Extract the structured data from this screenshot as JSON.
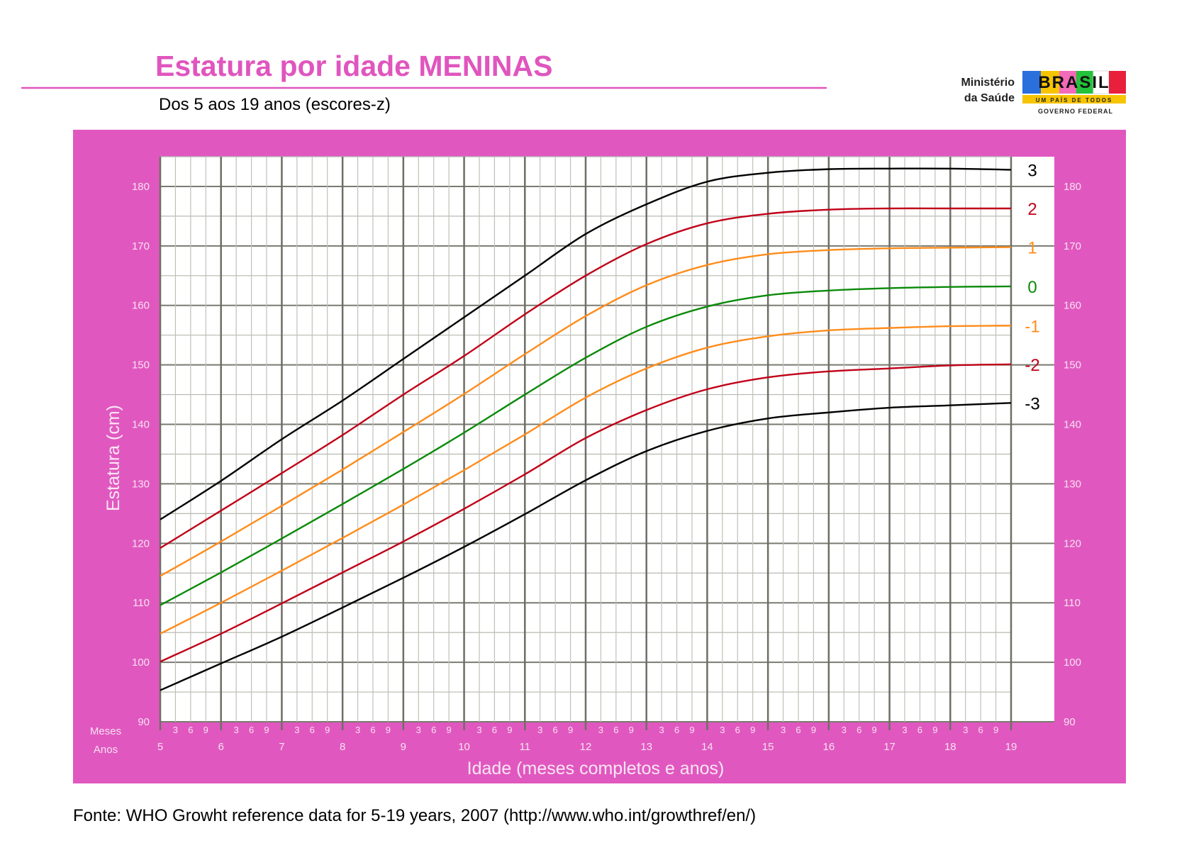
{
  "header": {
    "title": "Estatura por idade MENINAS",
    "subtitle": "Dos 5 aos 19 anos (escores-z)"
  },
  "logo": {
    "ministry_line1": "Ministério",
    "ministry_line2": "da Saúde",
    "brand": "BRASIL",
    "slogan": "UM PAÍS DE TODOS",
    "gov": "GOVERNO FEDERAL"
  },
  "colors": {
    "panel": "#e058bf",
    "title": "#e055be",
    "z3": "#000000",
    "z2": "#c00018",
    "z1": "#ff8c1a",
    "z0": "#0a8a0a"
  },
  "footer": {
    "source": "Fonte: WHO Growht reference data for 5-19 years, 2007 (http://www.who.int/growthref/en/)"
  },
  "chart_data": {
    "type": "line",
    "title": "Estatura por idade MENINAS",
    "xlabel": "Idade (meses completos e anos)",
    "ylabel": "Estatura (cm)",
    "xlim": [
      5,
      19
    ],
    "ylim": [
      90,
      185
    ],
    "grid": true,
    "x_row_labels": {
      "months": "Meses",
      "years": "Anos"
    },
    "month_ticks": [
      "3",
      "6",
      "9"
    ],
    "x_ticks": [
      "5",
      "6",
      "7",
      "8",
      "9",
      "10",
      "11",
      "12",
      "13",
      "14",
      "15",
      "16",
      "17",
      "18",
      "19"
    ],
    "y_ticks": [
      "90",
      "100",
      "110",
      "120",
      "130",
      "140",
      "150",
      "160",
      "170",
      "180"
    ],
    "x": [
      5,
      6,
      7,
      8,
      9,
      10,
      11,
      12,
      13,
      14,
      15,
      16,
      17,
      18,
      19
    ],
    "series": [
      {
        "name": "3",
        "color": "#000000",
        "values": [
          124,
          130.5,
          137.5,
          144,
          151,
          158,
          165,
          172,
          177,
          180.8,
          182.3,
          182.9,
          183,
          183,
          182.8
        ]
      },
      {
        "name": "2",
        "color": "#c00018",
        "values": [
          119.2,
          125.5,
          131.8,
          138.2,
          145,
          151.5,
          158.5,
          165,
          170.3,
          173.8,
          175.4,
          176.1,
          176.3,
          176.3,
          176.3
        ]
      },
      {
        "name": "1",
        "color": "#ff8c1a",
        "values": [
          114.5,
          120.3,
          126.3,
          132.4,
          138.7,
          145.1,
          151.8,
          158.2,
          163.4,
          166.8,
          168.6,
          169.3,
          169.6,
          169.7,
          169.8
        ]
      },
      {
        "name": "0",
        "color": "#0a8a0a",
        "values": [
          109.6,
          115.1,
          120.8,
          126.6,
          132.5,
          138.6,
          145,
          151.2,
          156.4,
          159.8,
          161.7,
          162.5,
          162.9,
          163.1,
          163.2
        ]
      },
      {
        "name": "-1",
        "color": "#ff8c1a",
        "values": [
          104.8,
          110,
          115.4,
          120.9,
          126.5,
          132.3,
          138.3,
          144.5,
          149.4,
          152.9,
          154.8,
          155.8,
          156.2,
          156.5,
          156.6
        ]
      },
      {
        "name": "-2",
        "color": "#c00018",
        "values": [
          100.1,
          104.8,
          109.9,
          115.1,
          120.3,
          125.8,
          131.6,
          137.7,
          142.4,
          145.9,
          147.9,
          148.9,
          149.4,
          149.9,
          150.1
        ]
      },
      {
        "name": "-3",
        "color": "#000000",
        "values": [
          95.3,
          99.8,
          104.3,
          109.2,
          114.2,
          119.4,
          124.9,
          130.6,
          135.5,
          138.9,
          141,
          142,
          142.8,
          143.2,
          143.6
        ]
      }
    ]
  }
}
